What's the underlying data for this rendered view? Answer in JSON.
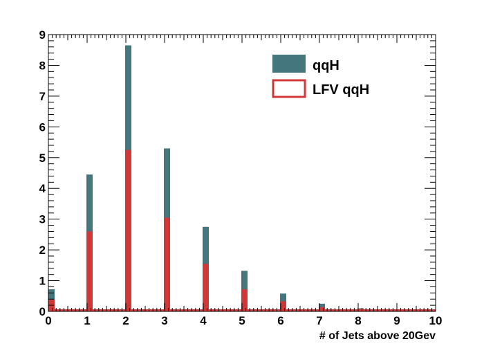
{
  "chart_data": {
    "type": "bar",
    "title": "",
    "xlabel": "# of Jets above 20Gev",
    "ylabel": "",
    "xlim": [
      0,
      10
    ],
    "ylim": [
      0,
      9
    ],
    "grid": false,
    "legend_position": "top-right",
    "x": [
      0,
      1,
      2,
      3,
      4,
      5,
      6,
      7,
      8,
      9
    ],
    "x_ticks": [
      "0",
      "1",
      "2",
      "3",
      "4",
      "5",
      "6",
      "7",
      "8",
      "9",
      "10"
    ],
    "y_ticks": [
      "0",
      "1",
      "2",
      "3",
      "4",
      "5",
      "6",
      "7",
      "8",
      "9"
    ],
    "series": [
      {
        "name": "qqH",
        "style": "filled",
        "color": "#44777d",
        "values": [
          0.72,
          4.45,
          8.65,
          5.3,
          2.75,
          1.32,
          0.58,
          0.25,
          0.1,
          0.04
        ]
      },
      {
        "name": "LFV qqH",
        "style": "outline",
        "color": "#d03838",
        "values": [
          0.38,
          2.6,
          5.25,
          3.05,
          1.55,
          0.72,
          0.33,
          0.14,
          0.08,
          0.02
        ]
      }
    ]
  }
}
